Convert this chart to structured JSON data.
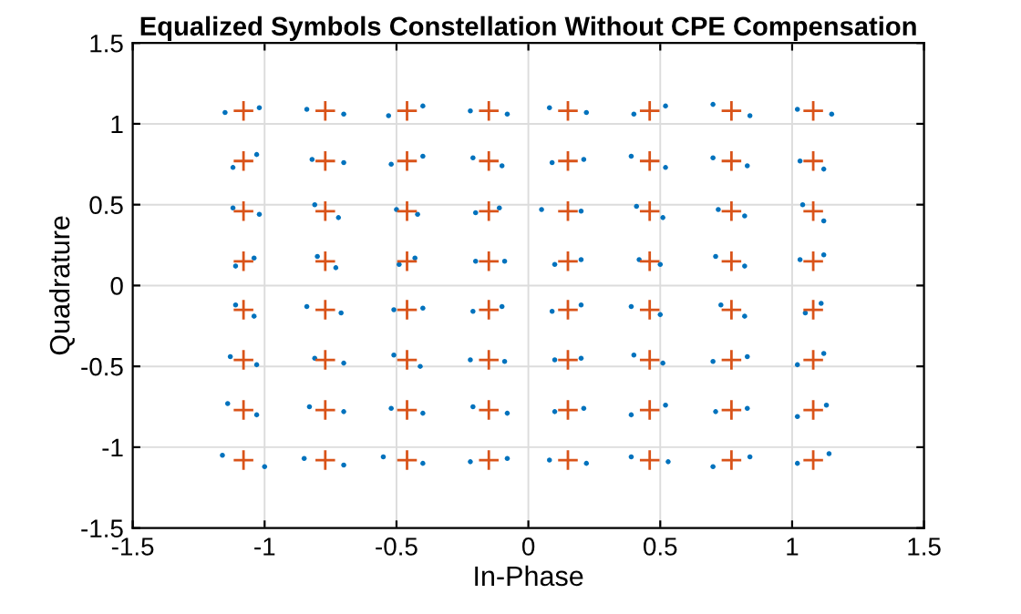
{
  "chart_data": {
    "type": "scatter",
    "title": "Equalized Symbols Constellation Without CPE Compensation",
    "xlabel": "In-Phase",
    "ylabel": "Quadrature",
    "xlim": [
      -1.5,
      1.5
    ],
    "ylim": [
      -1.5,
      1.5
    ],
    "xticks": [
      -1.5,
      -1,
      -0.5,
      0,
      0.5,
      1,
      1.5
    ],
    "yticks": [
      -1.5,
      -1,
      -0.5,
      0,
      0.5,
      1,
      1.5
    ],
    "grid": true,
    "series": [
      {
        "color": "#0072bd",
        "marker": "circle",
        "x": [
          -1.15,
          -1.02,
          -0.84,
          -0.7,
          -0.53,
          -0.4,
          -0.22,
          -0.08,
          0.08,
          0.22,
          0.4,
          0.52,
          0.7,
          0.84,
          1.02,
          1.15,
          -1.12,
          -1.03,
          -0.82,
          -0.7,
          -0.52,
          -0.4,
          -0.21,
          -0.1,
          0.09,
          0.21,
          0.39,
          0.52,
          0.7,
          0.83,
          1.03,
          1.12,
          -1.12,
          -1.02,
          -0.81,
          -0.72,
          -0.5,
          -0.42,
          -0.2,
          -0.11,
          0.05,
          0.2,
          0.41,
          0.51,
          0.72,
          0.82,
          1.04,
          1.12,
          -1.11,
          -1.04,
          -0.8,
          -0.73,
          -0.49,
          -0.43,
          -0.2,
          -0.09,
          0.1,
          0.2,
          0.42,
          0.5,
          0.71,
          0.82,
          1.03,
          1.12,
          -1.11,
          -1.04,
          -0.84,
          -0.71,
          -0.51,
          -0.4,
          -0.21,
          -0.1,
          0.09,
          0.2,
          0.39,
          0.5,
          0.73,
          0.82,
          1.05,
          1.11,
          -1.13,
          -1.03,
          -0.81,
          -0.7,
          -0.51,
          -0.41,
          -0.22,
          -0.09,
          0.1,
          0.2,
          0.4,
          0.51,
          0.7,
          0.83,
          1.02,
          1.12,
          -1.14,
          -1.03,
          -0.83,
          -0.7,
          -0.52,
          -0.4,
          -0.21,
          -0.08,
          0.1,
          0.21,
          0.39,
          0.52,
          0.71,
          0.83,
          1.02,
          1.13,
          -1.16,
          -1.0,
          -0.85,
          -0.7,
          -0.55,
          -0.4,
          -0.22,
          -0.08,
          0.08,
          0.22,
          0.39,
          0.53,
          0.7,
          0.84,
          1.02,
          1.14
        ],
        "values": [
          1.07,
          1.1,
          1.09,
          1.06,
          1.05,
          1.11,
          1.08,
          1.06,
          1.1,
          1.07,
          1.06,
          1.11,
          1.12,
          1.05,
          1.09,
          1.06,
          0.73,
          0.81,
          0.78,
          0.76,
          0.75,
          0.8,
          0.79,
          0.74,
          0.76,
          0.78,
          0.8,
          0.73,
          0.79,
          0.74,
          0.77,
          0.72,
          0.48,
          0.44,
          0.5,
          0.42,
          0.47,
          0.44,
          0.45,
          0.48,
          0.47,
          0.46,
          0.49,
          0.42,
          0.47,
          0.43,
          0.5,
          0.4,
          0.12,
          0.17,
          0.18,
          0.11,
          0.13,
          0.17,
          0.15,
          0.15,
          0.13,
          0.16,
          0.16,
          0.13,
          0.18,
          0.12,
          0.16,
          0.19,
          -0.12,
          -0.19,
          -0.13,
          -0.17,
          -0.15,
          -0.14,
          -0.16,
          -0.13,
          -0.16,
          -0.12,
          -0.13,
          -0.18,
          -0.12,
          -0.19,
          -0.17,
          -0.11,
          -0.44,
          -0.49,
          -0.45,
          -0.48,
          -0.43,
          -0.5,
          -0.46,
          -0.47,
          -0.46,
          -0.45,
          -0.43,
          -0.48,
          -0.47,
          -0.44,
          -0.49,
          -0.42,
          -0.73,
          -0.8,
          -0.75,
          -0.78,
          -0.76,
          -0.79,
          -0.75,
          -0.79,
          -0.78,
          -0.76,
          -0.8,
          -0.74,
          -0.78,
          -0.76,
          -0.81,
          -0.74,
          -1.05,
          -1.12,
          -1.07,
          -1.11,
          -1.06,
          -1.1,
          -1.09,
          -1.07,
          -1.08,
          -1.1,
          -1.06,
          -1.09,
          -1.12,
          -1.06,
          -1.1,
          -1.04
        ]
      },
      {
        "color": "#d95319",
        "marker": "cross",
        "x": [
          -1.08,
          -0.77,
          -0.46,
          -0.15,
          0.15,
          0.46,
          0.77,
          1.08,
          -1.08,
          -0.77,
          -0.46,
          -0.15,
          0.15,
          0.46,
          0.77,
          1.08,
          -1.08,
          -0.77,
          -0.46,
          -0.15,
          0.15,
          0.46,
          0.77,
          1.08,
          -1.08,
          -0.77,
          -0.46,
          -0.15,
          0.15,
          0.46,
          0.77,
          1.08,
          -1.08,
          -0.77,
          -0.46,
          -0.15,
          0.15,
          0.46,
          0.77,
          1.08,
          -1.08,
          -0.77,
          -0.46,
          -0.15,
          0.15,
          0.46,
          0.77,
          1.08,
          -1.08,
          -0.77,
          -0.46,
          -0.15,
          0.15,
          0.46,
          0.77,
          1.08,
          -1.08,
          -0.77,
          -0.46,
          -0.15,
          0.15,
          0.46,
          0.77,
          1.08
        ],
        "values": [
          1.08,
          1.08,
          1.08,
          1.08,
          1.08,
          1.08,
          1.08,
          1.08,
          0.77,
          0.77,
          0.77,
          0.77,
          0.77,
          0.77,
          0.77,
          0.77,
          0.46,
          0.46,
          0.46,
          0.46,
          0.46,
          0.46,
          0.46,
          0.46,
          0.15,
          0.15,
          0.15,
          0.15,
          0.15,
          0.15,
          0.15,
          0.15,
          -0.15,
          -0.15,
          -0.15,
          -0.15,
          -0.15,
          -0.15,
          -0.15,
          -0.15,
          -0.46,
          -0.46,
          -0.46,
          -0.46,
          -0.46,
          -0.46,
          -0.46,
          -0.46,
          -0.77,
          -0.77,
          -0.77,
          -0.77,
          -0.77,
          -0.77,
          -0.77,
          -0.77,
          -1.08,
          -1.08,
          -1.08,
          -1.08,
          -1.08,
          -1.08,
          -1.08,
          -1.08
        ]
      }
    ]
  }
}
